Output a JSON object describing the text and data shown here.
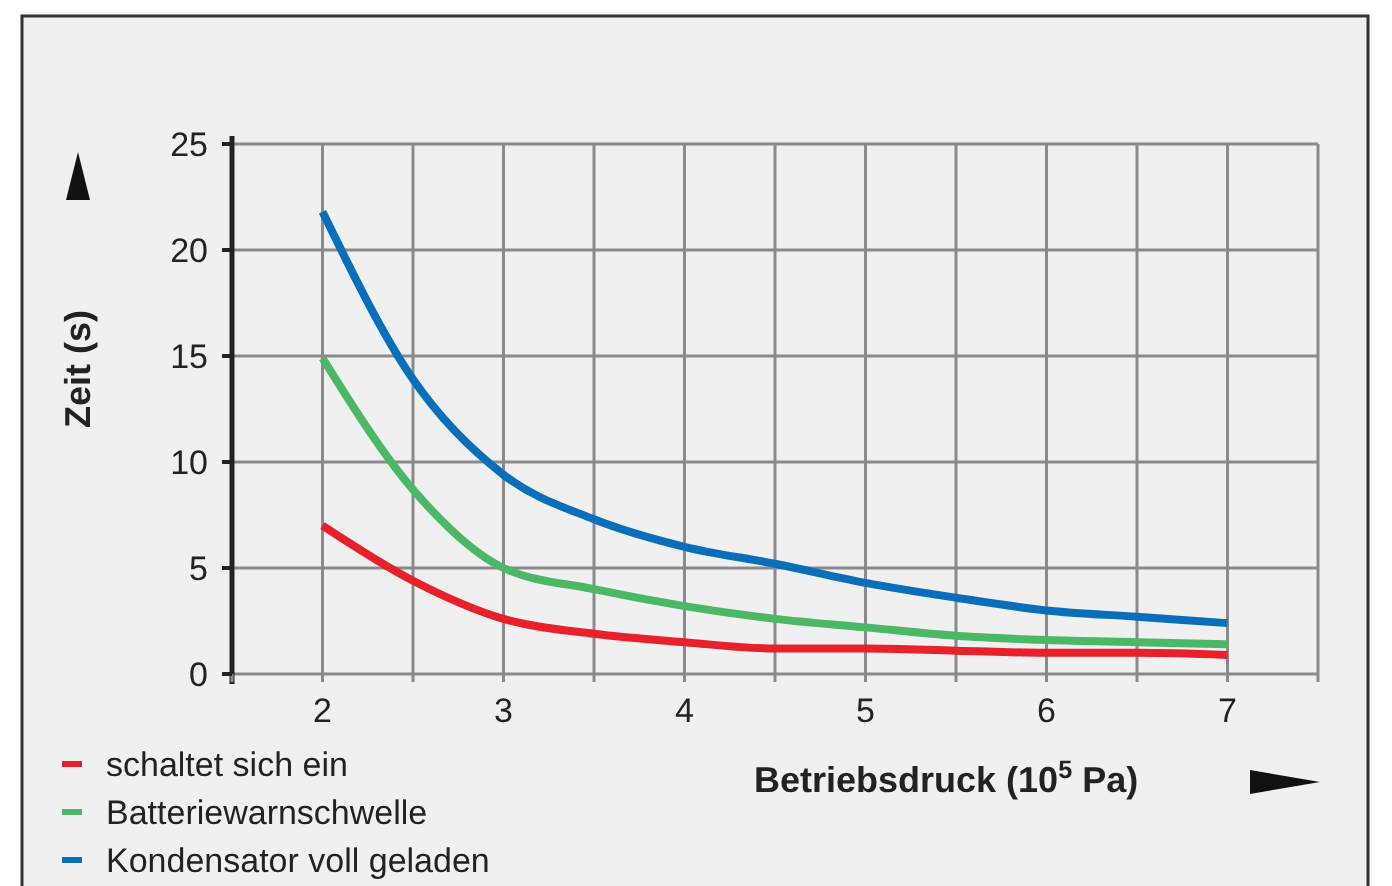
{
  "chart_data": {
    "type": "line",
    "xlabel": "Betriebsdruck (10$^{5}$ Pa)",
    "ylabel": "Zeit (s)",
    "x": [
      2,
      2.5,
      3,
      3.5,
      4,
      4.5,
      5,
      5.5,
      6,
      6.5,
      7
    ],
    "series": [
      {
        "name": "schaltet sich ein",
        "color": "#e8202a",
        "values": [
          7.0,
          4.4,
          2.6,
          1.9,
          1.5,
          1.2,
          1.2,
          1.1,
          1.0,
          1.0,
          0.9
        ]
      },
      {
        "name": "Batteriewarnschwelle",
        "color": "#4bb866",
        "values": [
          14.9,
          8.7,
          5.0,
          4.0,
          3.2,
          2.6,
          2.2,
          1.8,
          1.6,
          1.5,
          1.4
        ]
      },
      {
        "name": "Kondensator voll geladen",
        "color": "#0a6fba",
        "values": [
          21.8,
          13.9,
          9.4,
          7.3,
          6.0,
          5.2,
          4.3,
          3.6,
          3.0,
          2.7,
          2.4
        ]
      }
    ],
    "xlim": [
      1.5,
      7.5
    ],
    "xticks": [
      {
        "value": 1.5,
        "label": null
      },
      2,
      {
        "value": 2.5,
        "label": null
      },
      3,
      {
        "value": 3.5,
        "label": null
      },
      4,
      {
        "value": 4.5,
        "label": null
      },
      5,
      {
        "value": 5.5,
        "label": null
      },
      6,
      {
        "value": 6.5,
        "label": null
      },
      7,
      {
        "value": 7.5,
        "label": null
      }
    ],
    "ylim": [
      0,
      25
    ],
    "yticks": [
      0,
      5,
      10,
      15,
      20,
      25
    ],
    "grid": true,
    "legend": "bottom left",
    "marker": "none",
    "line_style": "solid"
  }
}
